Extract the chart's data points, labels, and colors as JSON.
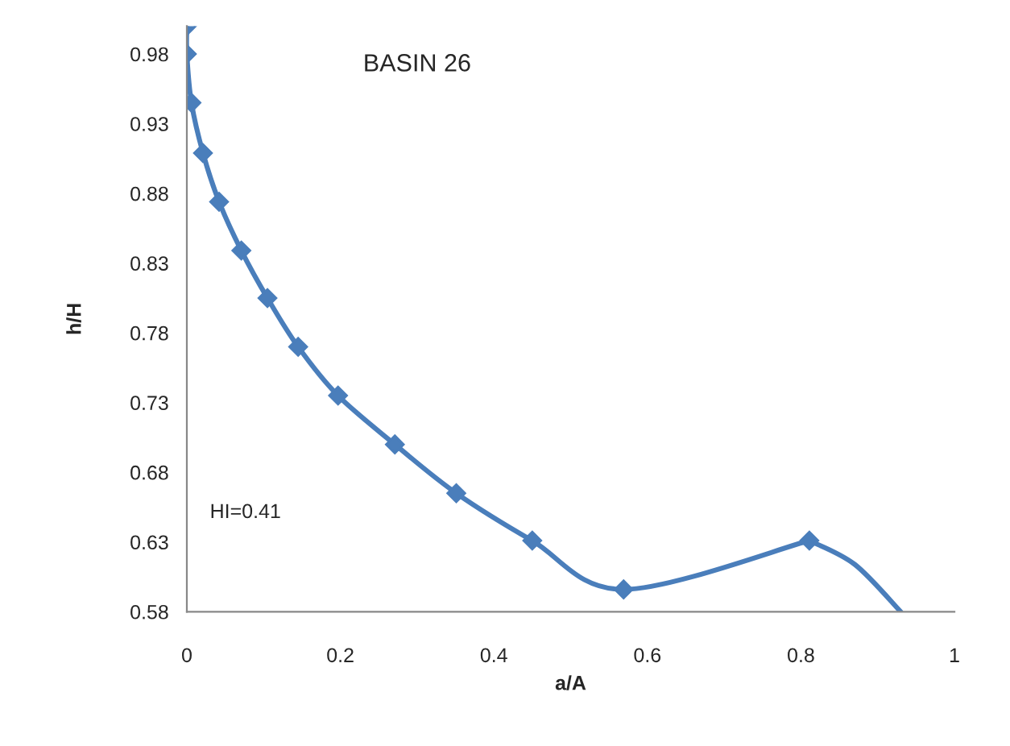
{
  "chart_data": {
    "type": "line",
    "title": "BASIN 26",
    "xlabel": "a/A",
    "ylabel": "h/H",
    "annotations": [
      "HI=0.41"
    ],
    "series": [
      {
        "color": "#4a7ebb",
        "marker": "diamond",
        "x": [
          0,
          0,
          0.006,
          0.021,
          0.042,
          0.071,
          0.105,
          0.145,
          0.197,
          0.271,
          0.351,
          0.45,
          0.569,
          0.811
        ],
        "values": [
          1.0,
          0.98,
          0.945,
          0.909,
          0.874,
          0.839,
          0.805,
          0.77,
          0.735,
          0.7,
          0.665,
          0.631,
          0.596,
          0.631
        ]
      },
      {
        "color": "#4a7ebb",
        "marker": "none",
        "x": [
          0.811,
          0.87,
          0.93
        ],
        "values": [
          0.631,
          0.614,
          0.58
        ]
      }
    ],
    "xlim": [
      0,
      1
    ],
    "xticks": [
      0,
      0.2,
      0.4,
      0.6,
      0.8,
      1
    ],
    "ylim": [
      0.58,
      1.0
    ],
    "yticks": [
      0.58,
      0.63,
      0.68,
      0.73,
      0.78,
      0.83,
      0.88,
      0.93,
      0.98
    ],
    "grid": false,
    "legend": false,
    "line_style": "solid"
  }
}
